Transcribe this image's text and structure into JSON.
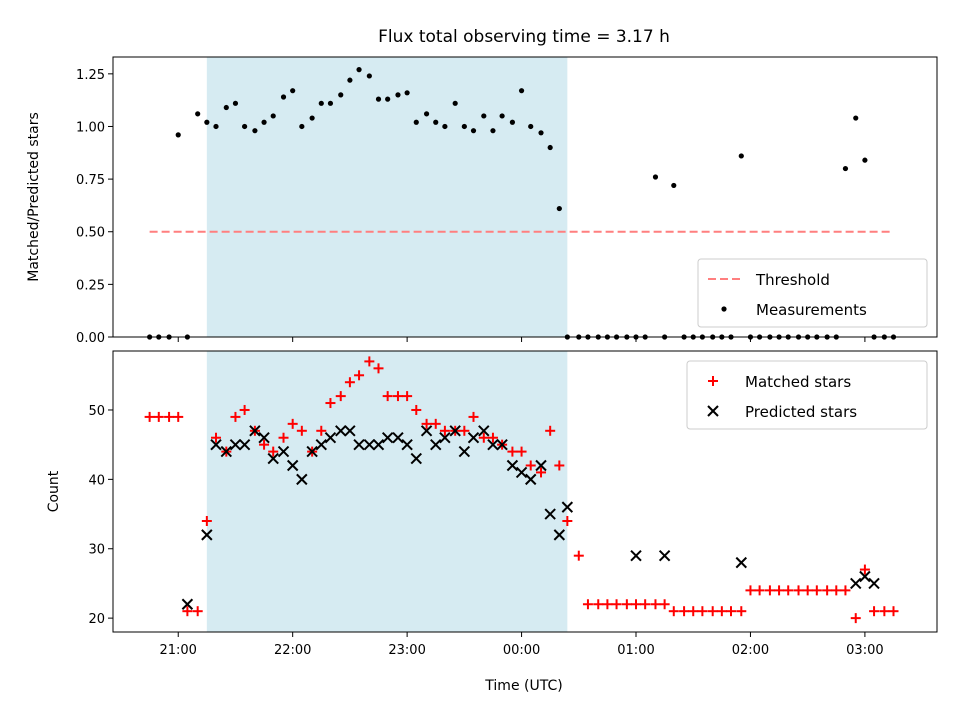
{
  "chart_data": {
    "title": "Flux total observing time = 3.17 h",
    "xlabel": "Time (UTC)",
    "x_unit": "hours UTC (values >= 24 are past midnight)",
    "xlim": [
      20.43,
      27.63
    ],
    "xticks": [
      {
        "value": 21,
        "label": "21:00"
      },
      {
        "value": 22,
        "label": "22:00"
      },
      {
        "value": 23,
        "label": "23:00"
      },
      {
        "value": 24,
        "label": "00:00"
      },
      {
        "value": 25,
        "label": "01:00"
      },
      {
        "value": 26,
        "label": "02:00"
      },
      {
        "value": 27,
        "label": "03:00"
      }
    ],
    "shaded_span": {
      "start": 21.25,
      "end": 24.4,
      "color": "#add8e6"
    },
    "panels": [
      {
        "type": "scatter",
        "ylabel": "Matched/Predicted stars",
        "ylim": [
          0,
          1.33
        ],
        "yticks": [
          0,
          0.25,
          0.5,
          0.75,
          1.0,
          1.25
        ],
        "ytick_labels": [
          "0.00",
          "0.25",
          "0.50",
          "0.75",
          "1.00",
          "1.25"
        ],
        "legend": {
          "position": "lower right",
          "entries": [
            "Threshold",
            "Measurements"
          ]
        },
        "series": [
          {
            "name": "Threshold",
            "kind": "dashed-line",
            "color": "#ff7f7f",
            "x": [
              20.75,
              27.25
            ],
            "y": [
              0.5,
              0.5
            ]
          },
          {
            "name": "Measurements",
            "kind": "dots",
            "color": "#000000",
            "x": [
              20.75,
              20.83,
              20.92,
              21.0,
              21.08,
              21.17,
              21.25,
              21.33,
              21.42,
              21.5,
              21.58,
              21.67,
              21.75,
              21.83,
              21.92,
              22.0,
              22.08,
              22.17,
              22.25,
              22.33,
              22.42,
              22.5,
              22.58,
              22.67,
              22.75,
              22.83,
              22.92,
              23.0,
              23.08,
              23.17,
              23.25,
              23.33,
              23.42,
              23.5,
              23.58,
              23.67,
              23.75,
              23.83,
              23.92,
              24.0,
              24.08,
              24.17,
              24.25,
              24.33,
              24.4,
              24.5,
              24.58,
              24.67,
              24.75,
              24.83,
              24.92,
              25.0,
              25.08,
              25.17,
              25.25,
              25.33,
              25.42,
              25.5,
              25.58,
              25.67,
              25.75,
              25.83,
              25.92,
              26.0,
              26.08,
              26.17,
              26.25,
              26.33,
              26.42,
              26.5,
              26.58,
              26.67,
              26.75,
              26.83,
              26.92,
              27.0,
              27.08,
              27.17,
              27.25
            ],
            "y": [
              0,
              0,
              0,
              0.96,
              0,
              1.06,
              1.02,
              1.0,
              1.09,
              1.11,
              1.0,
              0.98,
              1.02,
              1.05,
              1.14,
              1.17,
              1.0,
              1.04,
              1.11,
              1.11,
              1.15,
              1.22,
              1.27,
              1.24,
              1.13,
              1.13,
              1.15,
              1.16,
              1.02,
              1.06,
              1.02,
              1.0,
              1.11,
              1.0,
              0.98,
              1.05,
              0.98,
              1.05,
              1.02,
              1.17,
              1.0,
              0.97,
              0.9,
              0.61,
              0,
              0,
              0,
              0,
              0,
              0,
              0,
              0,
              0,
              0.76,
              0,
              0.72,
              0,
              0,
              0,
              0,
              0,
              0,
              0.86,
              0,
              0,
              0,
              0,
              0,
              0,
              0,
              0,
              0,
              0,
              0.8,
              1.04,
              0.84,
              0,
              0,
              0
            ]
          }
        ]
      },
      {
        "type": "scatter",
        "ylabel": "Count",
        "ylim": [
          18,
          58.5
        ],
        "yticks": [
          20,
          30,
          40,
          50
        ],
        "ytick_labels": [
          "20",
          "30",
          "40",
          "50"
        ],
        "legend": {
          "position": "upper right",
          "entries": [
            "Matched stars",
            "Predicted stars"
          ]
        },
        "series": [
          {
            "name": "Matched stars",
            "kind": "plus",
            "color": "#ff0000",
            "x": [
              20.75,
              20.83,
              20.92,
              21.0,
              21.08,
              21.17,
              21.25,
              21.33,
              21.42,
              21.5,
              21.58,
              21.67,
              21.75,
              21.83,
              21.92,
              22.0,
              22.08,
              22.17,
              22.25,
              22.33,
              22.42,
              22.5,
              22.58,
              22.67,
              22.75,
              22.83,
              22.92,
              23.0,
              23.08,
              23.17,
              23.25,
              23.33,
              23.42,
              23.5,
              23.58,
              23.67,
              23.75,
              23.83,
              23.92,
              24.0,
              24.08,
              24.17,
              24.25,
              24.33,
              24.4,
              24.5,
              24.58,
              24.67,
              24.75,
              24.83,
              24.92,
              25.0,
              25.08,
              25.17,
              25.25,
              25.33,
              25.42,
              25.5,
              25.58,
              25.67,
              25.75,
              25.83,
              25.92,
              26.0,
              26.08,
              26.17,
              26.25,
              26.33,
              26.42,
              26.5,
              26.58,
              26.67,
              26.75,
              26.83,
              26.92,
              27.0,
              27.08,
              27.17,
              27.25
            ],
            "y": [
              49,
              49,
              49,
              49,
              21,
              21,
              34,
              46,
              44,
              49,
              50,
              47,
              45,
              44,
              46,
              48,
              47,
              44,
              47,
              51,
              52,
              54,
              55,
              57,
              56,
              52,
              52,
              52,
              50,
              48,
              48,
              47,
              47,
              47,
              49,
              46,
              46,
              45,
              44,
              44,
              42,
              41,
              47,
              42,
              34,
              29,
              22,
              22,
              22,
              22,
              22,
              22,
              22,
              22,
              22,
              21,
              21,
              21,
              21,
              21,
              21,
              21,
              21,
              24,
              24,
              24,
              24,
              24,
              24,
              24,
              24,
              24,
              24,
              24,
              20,
              27,
              21,
              21,
              21
            ]
          },
          {
            "name": "Predicted stars",
            "kind": "x",
            "color": "#000000",
            "x": [
              21.08,
              21.25,
              21.33,
              21.42,
              21.5,
              21.58,
              21.67,
              21.75,
              21.83,
              21.92,
              22.0,
              22.08,
              22.17,
              22.25,
              22.33,
              22.42,
              22.5,
              22.58,
              22.67,
              22.75,
              22.83,
              22.92,
              23.0,
              23.08,
              23.17,
              23.25,
              23.33,
              23.42,
              23.5,
              23.58,
              23.67,
              23.75,
              23.83,
              23.92,
              24.0,
              24.08,
              24.17,
              24.25,
              24.33,
              24.4,
              25.0,
              25.25,
              25.92,
              26.92,
              27.0,
              27.08
            ],
            "y": [
              22,
              32,
              45,
              44,
              45,
              45,
              47,
              46,
              43,
              44,
              42,
              40,
              44,
              45,
              46,
              47,
              47,
              45,
              45,
              45,
              46,
              46,
              45,
              43,
              47,
              45,
              46,
              47,
              44,
              46,
              47,
              45,
              45,
              42,
              41,
              40,
              42,
              35,
              32,
              36,
              29,
              29,
              28,
              25,
              26,
              25
            ]
          }
        ]
      }
    ]
  }
}
